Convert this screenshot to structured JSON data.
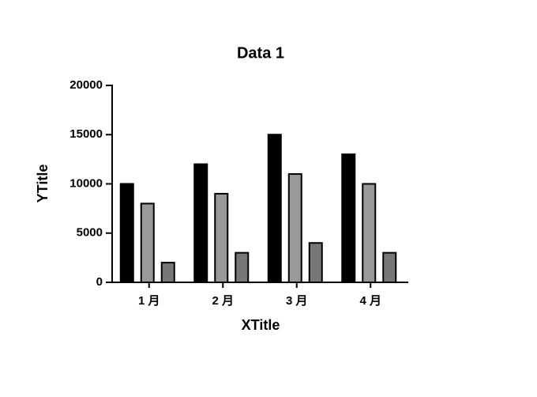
{
  "chart_data": {
    "type": "bar",
    "title": "Data 1",
    "x_label": "XTitle",
    "y_label": "YTitle",
    "categories": [
      "1 月",
      "2 月",
      "3 月",
      "4 月"
    ],
    "series": [
      {
        "color": "#000000",
        "values": [
          10000,
          12000,
          15000,
          13000
        ]
      },
      {
        "color": "#999999",
        "values": [
          8000,
          9000,
          11000,
          10000
        ]
      },
      {
        "color": "#777777",
        "values": [
          2000,
          3000,
          4000,
          3000
        ]
      }
    ],
    "ylim": [
      0,
      20000
    ],
    "yticks": [
      0,
      5000,
      10000,
      15000,
      20000
    ],
    "grid": false
  }
}
